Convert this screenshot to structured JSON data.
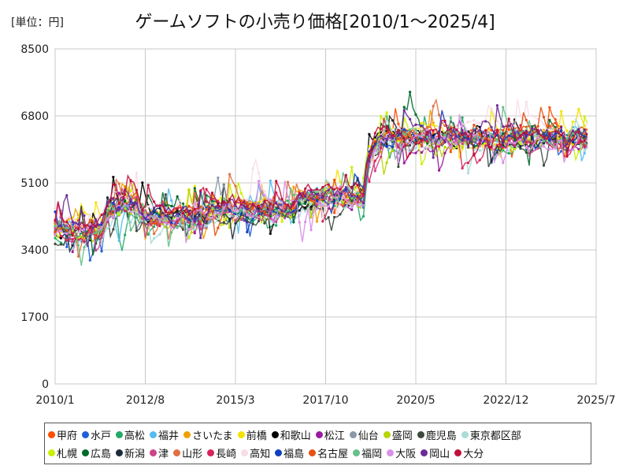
{
  "unit_label": "[単位：円]",
  "chart_data": {
    "type": "line",
    "title": "ゲームソフトの小売り価格[2010/1〜2025/4]",
    "xlabel": "",
    "ylabel": "",
    "ylim": [
      0,
      8500
    ],
    "yticks": [
      0,
      1700,
      3400,
      5100,
      6800,
      8500
    ],
    "x_range": [
      "2010-01",
      "2025-07"
    ],
    "xticks": [
      "2010/1",
      "2012/8",
      "2015/3",
      "2017/10",
      "2020/5",
      "2022/12",
      "2025/7"
    ],
    "grid": true,
    "legend_position": "bottom",
    "series": [
      {
        "name": "甲府",
        "color": "#ff4d00"
      },
      {
        "name": "水戸",
        "color": "#1f5fd6"
      },
      {
        "name": "高松",
        "color": "#22aa66"
      },
      {
        "name": "福井",
        "color": "#55bbee"
      },
      {
        "name": "さいたま",
        "color": "#f0a000"
      },
      {
        "name": "前橋",
        "color": "#f5e100"
      },
      {
        "name": "和歌山",
        "color": "#000000"
      },
      {
        "name": "松江",
        "color": "#9a1aa0"
      },
      {
        "name": "仙台",
        "color": "#8a98a8"
      },
      {
        "name": "盛岡",
        "color": "#b8d400"
      },
      {
        "name": "鹿児島",
        "color": "#3c4a3c"
      },
      {
        "name": "東京都区部",
        "color": "#a8dcd6"
      },
      {
        "name": "札幌",
        "color": "#c8f000"
      },
      {
        "name": "広島",
        "color": "#006a2a"
      },
      {
        "name": "新潟",
        "color": "#1c2a3a"
      },
      {
        "name": "津",
        "color": "#cc4488"
      },
      {
        "name": "山形",
        "color": "#e07040"
      },
      {
        "name": "長崎",
        "color": "#d8245a"
      },
      {
        "name": "高知",
        "color": "#f8dce8"
      },
      {
        "name": "福島",
        "color": "#1040c0"
      },
      {
        "name": "名古屋",
        "color": "#e85010"
      },
      {
        "name": "福岡",
        "color": "#66c088"
      },
      {
        "name": "大阪",
        "color": "#d890e8"
      },
      {
        "name": "岡山",
        "color": "#6a2c98"
      },
      {
        "name": "大分",
        "color": "#c0103a"
      }
    ],
    "phases": [
      {
        "from": "2010-01",
        "to": "2011-06",
        "level": 4000
      },
      {
        "from": "2011-06",
        "to": "2012-06",
        "level": 4600
      },
      {
        "from": "2012-06",
        "to": "2014-06",
        "level": 4300
      },
      {
        "from": "2014-06",
        "to": "2016-12",
        "level": 4500
      },
      {
        "from": "2016-12",
        "to": "2018-12",
        "level": 4800
      },
      {
        "from": "2018-12",
        "to": "2025-05",
        "level": 6300
      }
    ]
  }
}
